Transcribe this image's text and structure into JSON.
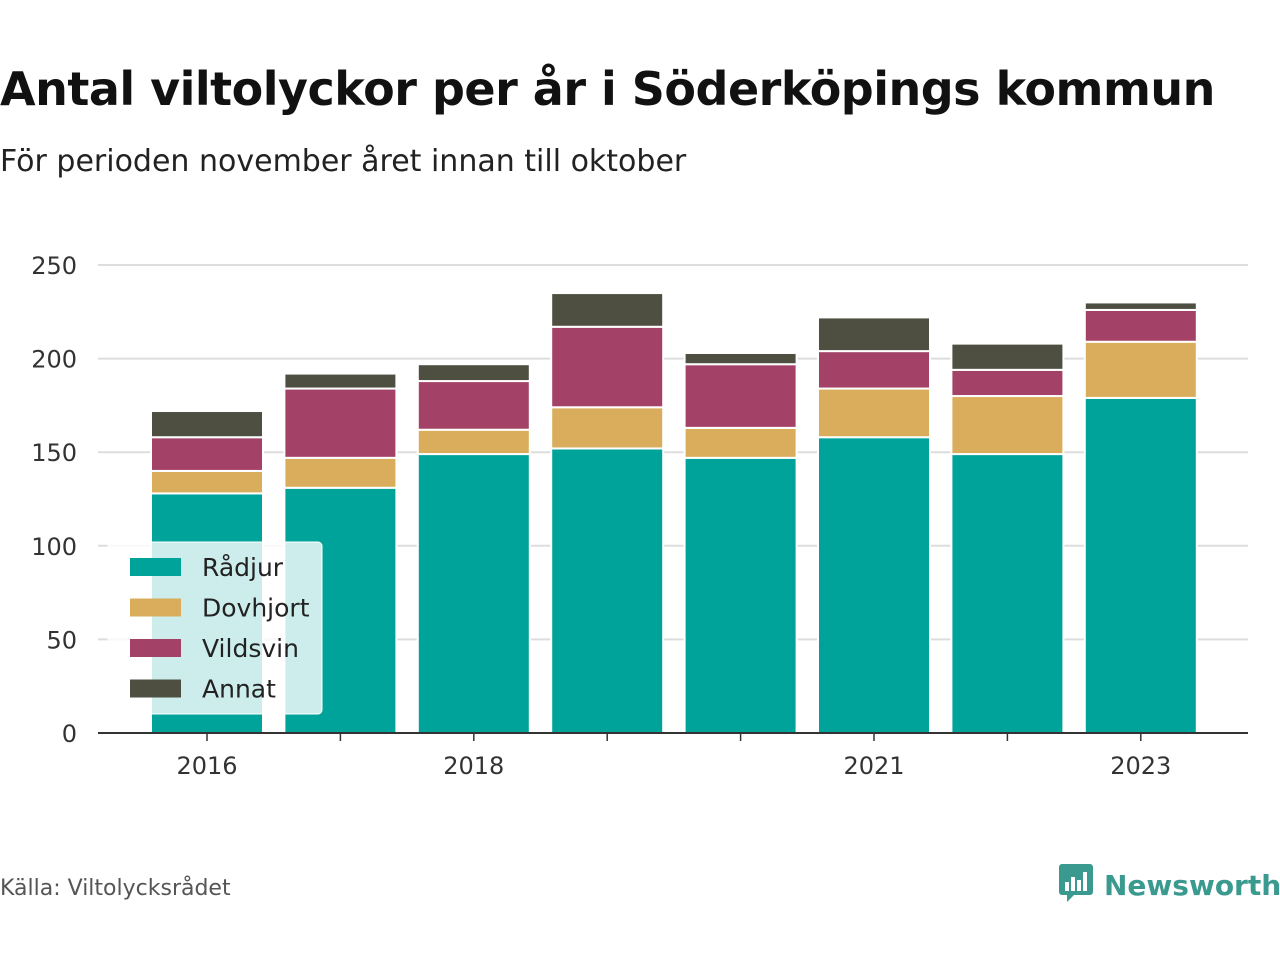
{
  "header": {
    "title": "Antal viltolyckor per år i Söderköpings kommun",
    "subtitle": "För perioden november året innan till oktober"
  },
  "footer": {
    "source": "Källa: Viltolycksrådet",
    "brand": "Newsworthy",
    "brand_icon": "newsworthy-logo-icon"
  },
  "chart_data": {
    "type": "bar",
    "stacked": true,
    "x": [
      2016,
      2017,
      2018,
      2019,
      2020,
      2021,
      2022,
      2023
    ],
    "x_tick_labels": [
      "2016",
      "2018",
      "2021",
      "2023"
    ],
    "y_ticks": [
      0,
      50,
      100,
      150,
      200,
      250
    ],
    "ylim": [
      0,
      250
    ],
    "grid": true,
    "legend_position": "bottom-left",
    "series": [
      {
        "name": "Rådjur",
        "color": "#00a39a",
        "values": [
          128,
          131,
          149,
          152,
          147,
          158,
          149,
          179
        ]
      },
      {
        "name": "Dovhjort",
        "color": "#d9ad5b",
        "values": [
          12,
          16,
          13,
          22,
          16,
          26,
          31,
          30
        ]
      },
      {
        "name": "Vildsvin",
        "color": "#a34166",
        "values": [
          18,
          37,
          26,
          43,
          34,
          20,
          14,
          17
        ]
      },
      {
        "name": "Annat",
        "color": "#4e4f40",
        "values": [
          14,
          8,
          9,
          18,
          6,
          18,
          14,
          4
        ]
      }
    ]
  }
}
